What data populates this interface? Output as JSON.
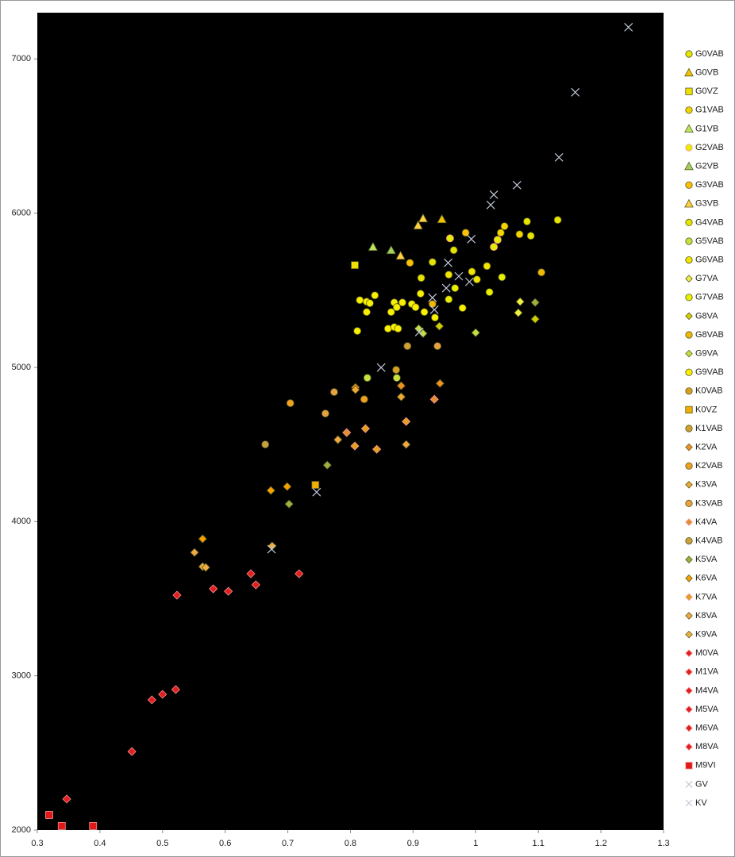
{
  "chart_data": {
    "type": "scatter",
    "xlim": [
      0.3,
      1.3
    ],
    "xticks": [
      0.3,
      0.4,
      0.5,
      0.6,
      0.7,
      0.8,
      0.9,
      1,
      1.1,
      1.2,
      1.3
    ],
    "ylim": [
      2000,
      7300
    ],
    "yticks": [
      2000,
      3000,
      4000,
      5000,
      6000,
      7000
    ],
    "legend": "right",
    "series": [
      {
        "name": "G0VAB",
        "marker": "circle",
        "color": "#e6e600",
        "x": [
          1.131,
          1.082,
          1.088
        ],
        "values": [
          5956,
          5946,
          5853
        ]
      },
      {
        "name": "G0VB",
        "marker": "triangle",
        "color": "#f2c200",
        "x": [
          0.946
        ],
        "values": [
          5961
        ]
      },
      {
        "name": "G0VZ",
        "marker": "square",
        "color": "#f0e000",
        "x": [
          0.807
        ],
        "values": [
          5663
        ]
      },
      {
        "name": "G1VAB",
        "marker": "circle",
        "color": "#f2d400",
        "x": [
          1.07,
          1.046,
          1.04
        ],
        "values": [
          5863,
          5915,
          5873
        ]
      },
      {
        "name": "G1VB",
        "marker": "triangle",
        "color": "#b8e860",
        "x": [
          0.836
        ],
        "values": [
          5781
        ]
      },
      {
        "name": "G2VAB",
        "marker": "circle",
        "color": "#e0f000",
        "x": [
          1.035,
          1.029,
          0.959
        ],
        "values": [
          5827,
          5781,
          5837
        ]
      },
      {
        "name": "G2VB",
        "marker": "triangle",
        "color": "#a0d060",
        "x": [
          0.865
        ],
        "values": [
          5760
        ]
      },
      {
        "name": "G3VAB",
        "marker": "circle",
        "color": "#ffc000",
        "x": [
          0.895,
          0.984
        ],
        "values": [
          5678,
          5873
        ]
      },
      {
        "name": "G3VB",
        "marker": "triangle",
        "color": "#ffd040",
        "x": [
          0.916,
          0.908,
          0.88
        ],
        "values": [
          5966,
          5920,
          5724
        ]
      },
      {
        "name": "G4VAB",
        "marker": "circle",
        "color": "#e4e400",
        "x": [
          0.965,
          0.931,
          0.913
        ],
        "values": [
          5760,
          5683,
          5580
        ]
      },
      {
        "name": "G5VAB",
        "marker": "circle",
        "color": "#c8e040",
        "x": [
          0.827,
          0.874
        ],
        "values": [
          4932,
          4932
        ]
      },
      {
        "name": "G6VAB",
        "marker": "circle",
        "color": "#f0e400",
        "x": [
          0.957,
          0.994,
          1.002,
          1.018
        ],
        "values": [
          5601,
          5621,
          5570,
          5657
        ]
      },
      {
        "name": "G7VA",
        "marker": "diamond",
        "color": "#f0f040",
        "x": [
          1.071,
          1.068
        ],
        "values": [
          5426,
          5354
        ]
      },
      {
        "name": "G7VAB",
        "marker": "circle",
        "color": "#e8f000",
        "x": [
          1.022,
          1.042,
          0.967,
          0.957
        ],
        "values": [
          5488,
          5585,
          5514,
          5441
        ]
      },
      {
        "name": "G8VA",
        "marker": "diamond",
        "color": "#d0d000",
        "x": [
          1.095,
          0.942
        ],
        "values": [
          5313,
          5267
        ]
      },
      {
        "name": "G8VAB",
        "marker": "circle",
        "color": "#f0b800",
        "x": [
          1.105,
          0.931
        ],
        "values": [
          5616,
          5411
        ]
      },
      {
        "name": "G9VA",
        "marker": "diamond",
        "color": "#c0e040",
        "x": [
          1.0,
          0.909,
          0.916
        ],
        "values": [
          5225,
          5251,
          5220
        ]
      },
      {
        "name": "G9VAB",
        "marker": "circle",
        "color": "#f8f000",
        "x": [
          0.912,
          0.898,
          0.883,
          0.87,
          0.865,
          0.874,
          0.904,
          0.918,
          0.935,
          0.979,
          0.839,
          0.826,
          0.815,
          0.831,
          0.826,
          0.811,
          0.86,
          0.87,
          0.876
        ],
        "values": [
          5478,
          5411,
          5421,
          5421,
          5359,
          5390,
          5390,
          5359,
          5323,
          5385,
          5467,
          5426,
          5436,
          5416,
          5359,
          5236,
          5251,
          5261,
          5251
        ]
      },
      {
        "name": "K0VAB",
        "marker": "circle",
        "color": "#d8a020",
        "x": [
          0.873
        ],
        "values": [
          4984
        ]
      },
      {
        "name": "K0VZ",
        "marker": "square",
        "color": "#f0b000",
        "x": [
          0.744
        ],
        "values": [
          4238
        ]
      },
      {
        "name": "K1VAB",
        "marker": "circle",
        "color": "#d0a030",
        "x": [
          0.891
        ],
        "values": [
          5138
        ]
      },
      {
        "name": "K2VA",
        "marker": "diamond",
        "color": "#f09020",
        "x": [
          0.808,
          0.881,
          0.943
        ],
        "values": [
          4870,
          4881,
          4896
        ]
      },
      {
        "name": "K2VAB",
        "marker": "circle",
        "color": "#f0a020",
        "x": [
          0.822,
          0.704
        ],
        "values": [
          4793,
          4768
        ]
      },
      {
        "name": "K3VA",
        "marker": "diamond",
        "color": "#f0a830",
        "x": [
          0.808,
          0.881
        ],
        "values": [
          4855,
          4809
        ]
      },
      {
        "name": "K3VAB",
        "marker": "circle",
        "color": "#e8a040",
        "x": [
          0.939,
          0.774,
          0.76
        ],
        "values": [
          5138,
          4840,
          4701
        ]
      },
      {
        "name": "K4VA",
        "marker": "diamond",
        "color": "#e09030",
        "x": [
          0.934,
          0.794
        ],
        "values": [
          4793,
          4577
        ]
      },
      {
        "name": "K4VAB",
        "marker": "circle",
        "color": "#c8a040",
        "x": [
          0.664
        ],
        "values": [
          4500
        ]
      },
      {
        "name": "K5VA",
        "marker": "diamond",
        "color": "#a0b040",
        "x": [
          0.763,
          0.702,
          1.095
        ],
        "values": [
          4366,
          4114,
          5421
        ]
      },
      {
        "name": "K6VA",
        "marker": "diamond",
        "color": "#f8a000",
        "x": [
          0.673,
          0.699,
          0.564
        ],
        "values": [
          4202,
          4227,
          3888
        ]
      },
      {
        "name": "K7VA",
        "marker": "diamond",
        "color": "#e0a020",
        "x": [
          0.889,
          0.824,
          0.807,
          0.842
        ],
        "values": [
          4649,
          4603,
          4490,
          4469
        ]
      },
      {
        "name": "K8VA",
        "marker": "diamond",
        "color": "#f0a840",
        "x": [
          0.78,
          0.889,
          0.551
        ],
        "values": [
          4531,
          4500,
          3800
        ]
      },
      {
        "name": "K9VA",
        "marker": "diamond",
        "color": "#f0b040",
        "x": [
          0.564,
          0.569,
          0.675
        ],
        "values": [
          3708,
          3703,
          3842
        ]
      },
      {
        "name": "M0VA",
        "marker": "diamond",
        "color": "#e02020",
        "x": [
          0.347,
          0.523
        ],
        "values": [
          2201,
          3523
        ]
      },
      {
        "name": "M1VA",
        "marker": "diamond",
        "color": "#e02020",
        "x": [
          0.451,
          0.581
        ],
        "values": [
          2509,
          3564
        ]
      },
      {
        "name": "M4VA",
        "marker": "diamond",
        "color": "#e02020",
        "x": [
          0.483,
          0.605
        ],
        "values": [
          2844,
          3548
        ]
      },
      {
        "name": "M5VA",
        "marker": "diamond",
        "color": "#e02020",
        "x": [
          0.5,
          0.641
        ],
        "values": [
          2880,
          3662
        ]
      },
      {
        "name": "M6VA",
        "marker": "diamond",
        "color": "#e02020",
        "x": [
          0.521,
          0.649
        ],
        "values": [
          2911,
          3590
        ]
      },
      {
        "name": "M8VA",
        "marker": "diamond",
        "color": "#e02020",
        "x": [
          0.718
        ],
        "values": [
          3662
        ]
      },
      {
        "name": "M9VI",
        "marker": "square",
        "color": "#e01818",
        "x": [
          0.319,
          0.339,
          0.389
        ],
        "values": [
          2098,
          2026,
          2026
        ]
      },
      {
        "name": "GV",
        "marker": "x",
        "color": "#c0c8d8",
        "x": [
          1.244,
          1.159,
          1.133,
          1.066,
          1.029,
          1.024,
          0.993,
          0.956,
          0.931,
          0.953,
          0.973,
          0.99
        ],
        "values": [
          7206,
          6784,
          6362,
          6182,
          6120,
          6053,
          5832,
          5678,
          5452,
          5514,
          5591,
          5555
        ]
      },
      {
        "name": "KV",
        "marker": "x",
        "color": "#c0c8d8",
        "x": [
          0.934,
          0.91,
          0.849,
          0.746,
          0.674
        ],
        "values": [
          5374,
          5230,
          4999,
          4191,
          3821
        ]
      }
    ]
  }
}
